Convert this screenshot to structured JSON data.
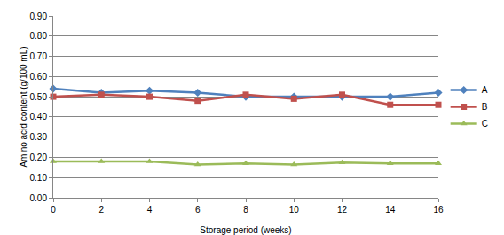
{
  "chart_data": {
    "type": "line",
    "x_label": "Storage period (weeks)",
    "y_label": "Amino acid content (g/100 mL)",
    "x": [
      0,
      2,
      4,
      6,
      8,
      10,
      12,
      14,
      16
    ],
    "series": [
      {
        "name": "A",
        "color": "#4f81bd",
        "marker": "diamond",
        "values": [
          0.54,
          0.52,
          0.53,
          0.52,
          0.5,
          0.5,
          0.5,
          0.5,
          0.52
        ]
      },
      {
        "name": "B",
        "color": "#c0504d",
        "marker": "square",
        "values": [
          0.5,
          0.51,
          0.5,
          0.48,
          0.51,
          0.49,
          0.51,
          0.46,
          0.46
        ]
      },
      {
        "name": "C",
        "color": "#9bbb59",
        "marker": "triangle-up",
        "values": [
          0.18,
          0.18,
          0.18,
          0.165,
          0.17,
          0.165,
          0.175,
          0.17,
          0.17
        ]
      }
    ],
    "xlim": [
      0,
      16
    ],
    "xticks": [
      0,
      2,
      4,
      6,
      8,
      10,
      12,
      14,
      16
    ],
    "ylim": [
      0,
      0.9
    ],
    "yticks": [
      {
        "value": 0,
        "label": "0.00"
      },
      {
        "value": 0.1,
        "label": "0.10"
      },
      {
        "value": 0.2,
        "label": "0.20"
      },
      {
        "value": 0.3,
        "label": "0.30"
      },
      {
        "value": 0.4,
        "label": "0.40"
      },
      {
        "value": 0.5,
        "label": "0.50"
      },
      {
        "value": 0.6,
        "label": "0.60"
      },
      {
        "value": 0.7,
        "label": "0.70"
      },
      {
        "value": 0.8,
        "label": "0.80"
      },
      {
        "value": 0.9,
        "label": "0.90"
      }
    ],
    "grid": true,
    "legend": "right"
  }
}
